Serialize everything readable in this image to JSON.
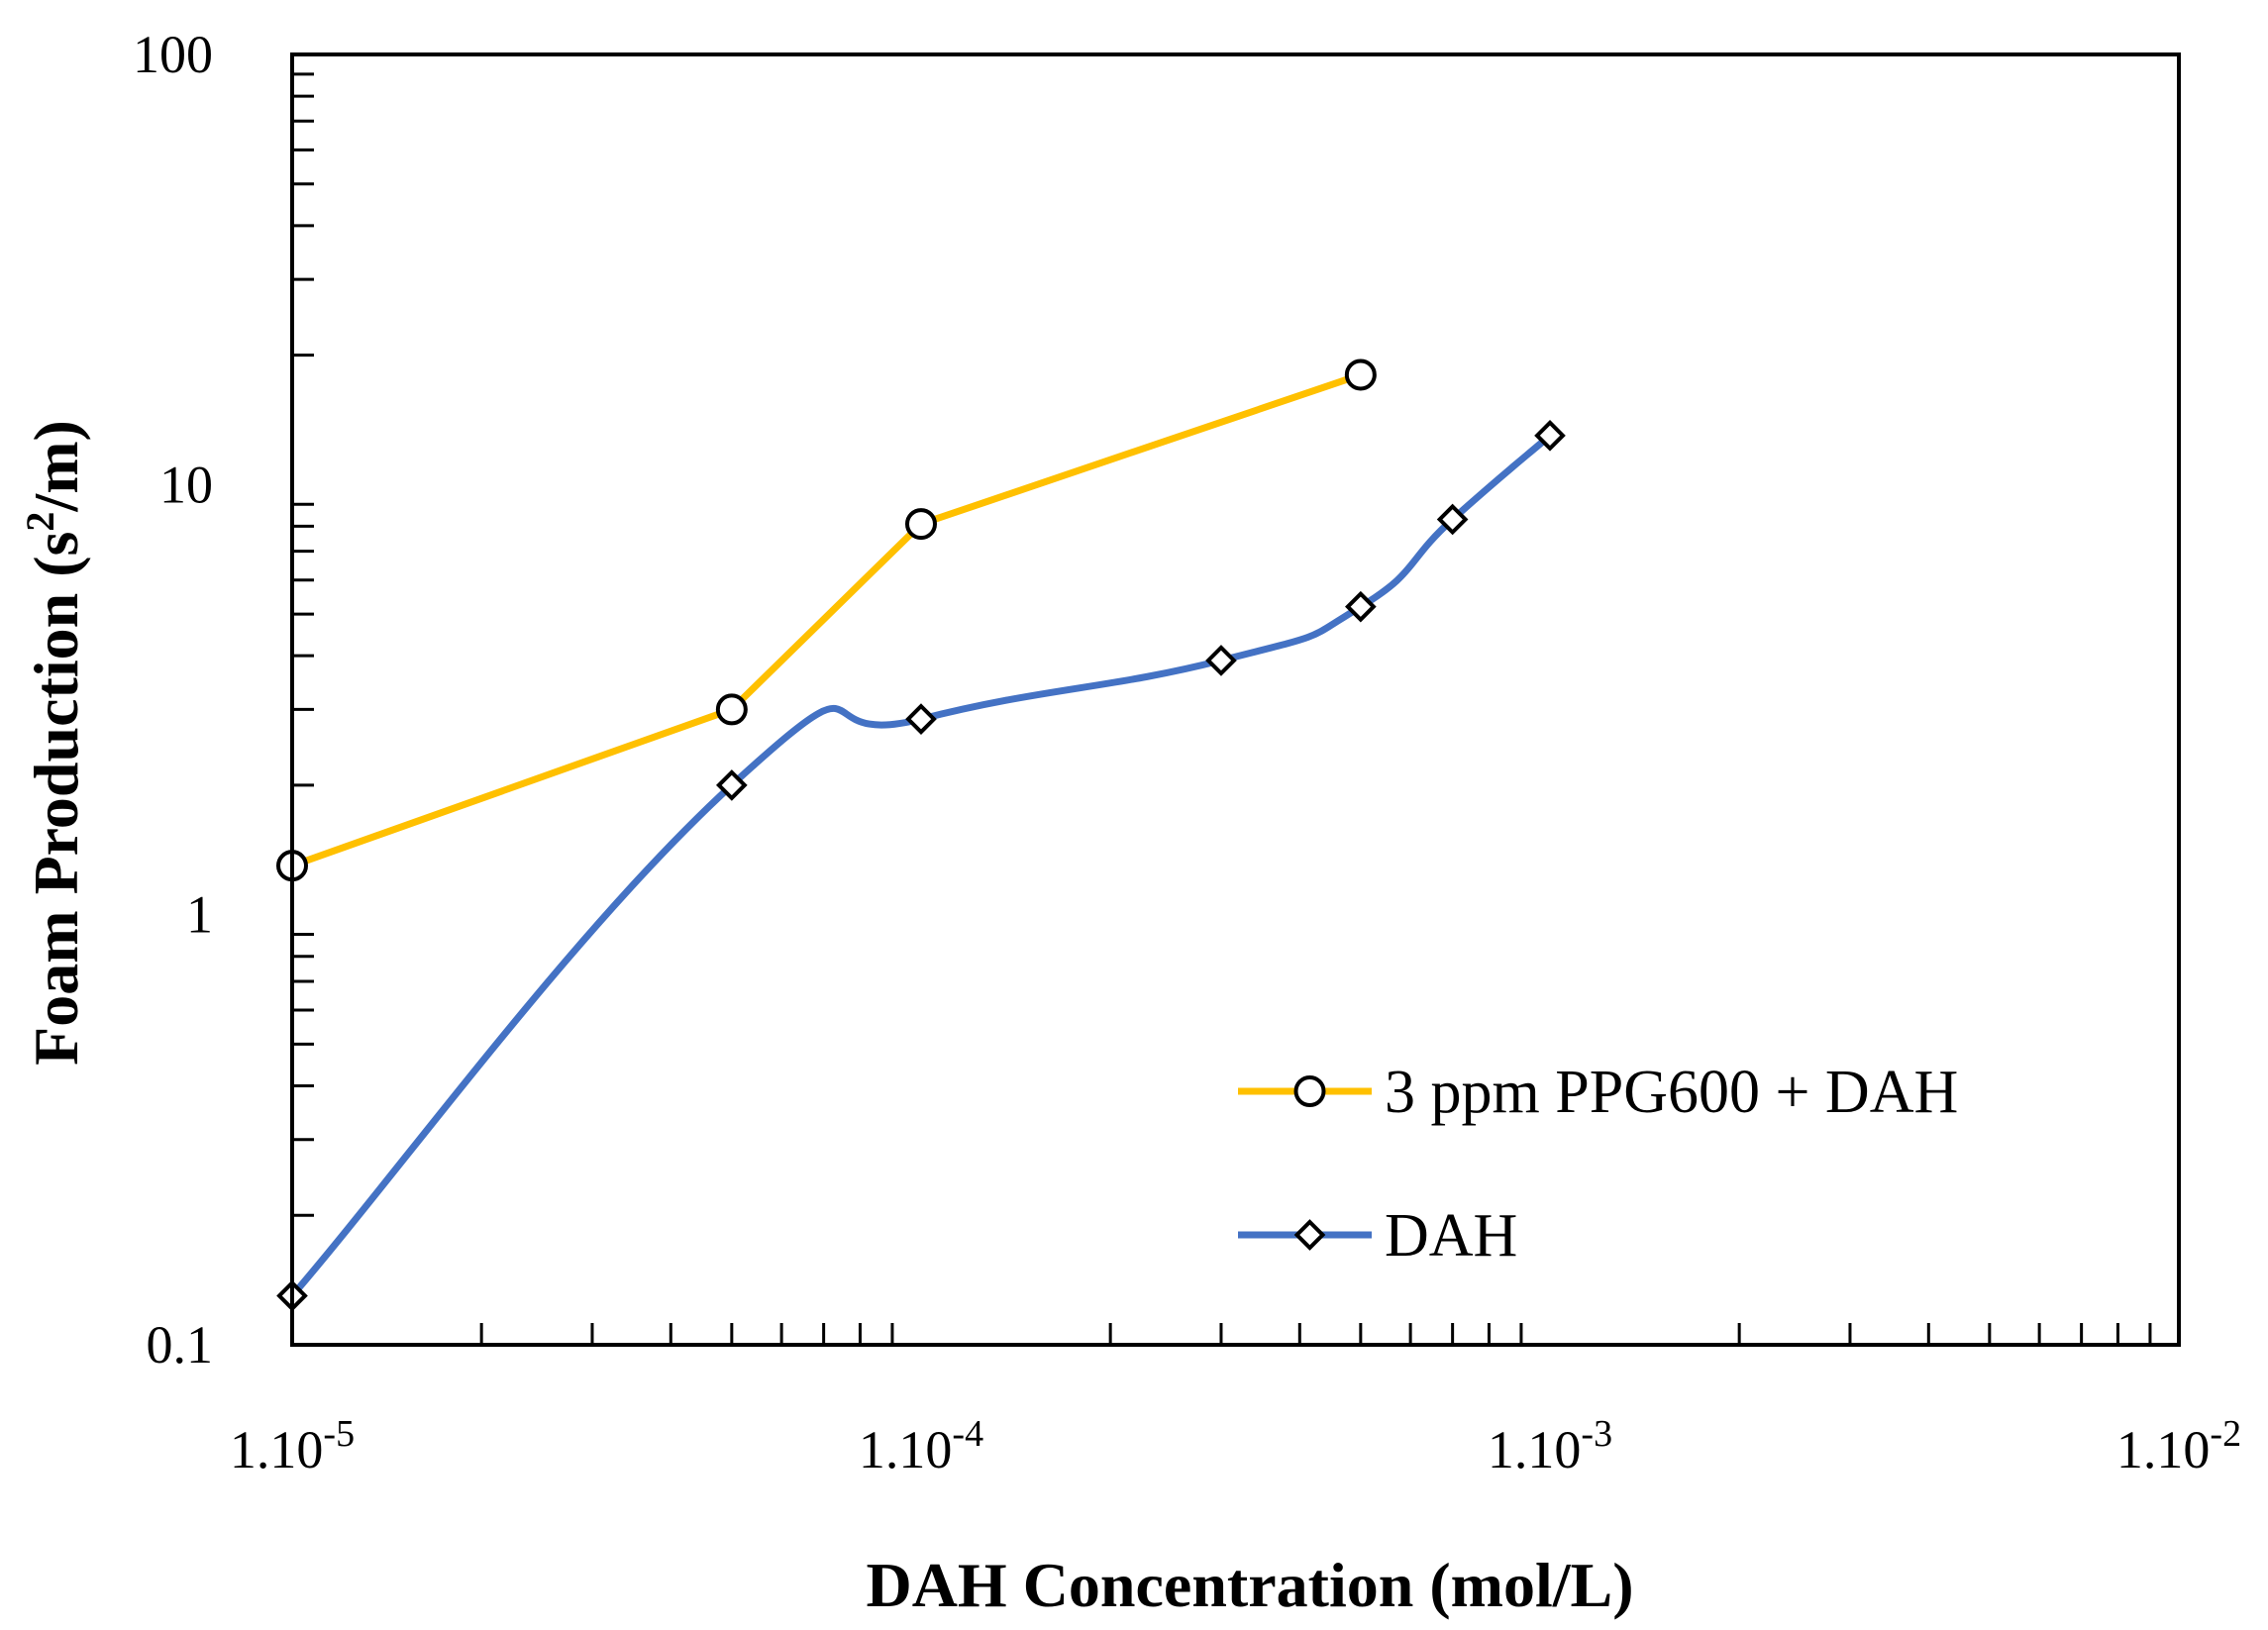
{
  "chart_data": {
    "type": "line",
    "title": "",
    "xlabel": "DAH Concentration (mol/L)",
    "ylabel_main": "Foam Production (s",
    "ylabel_sup": "2",
    "ylabel_tail": "/m)",
    "xscale": "log",
    "yscale": "log",
    "xlim": [
      1e-05,
      0.01
    ],
    "ylim": [
      0.1,
      100
    ],
    "grid": false,
    "legend_position": "bottom-right",
    "x_ticks": [
      {
        "value": 1e-05,
        "base": "1.10",
        "exp": "-5"
      },
      {
        "value": 0.0001,
        "base": "1.10",
        "exp": "-4"
      },
      {
        "value": 0.001,
        "base": "1.10",
        "exp": "-3"
      },
      {
        "value": 0.01,
        "base": "1.10",
        "exp": "-2"
      }
    ],
    "y_ticks": [
      {
        "value": 0.1,
        "label": "0.1"
      },
      {
        "value": 1,
        "label": "1"
      },
      {
        "value": 10,
        "label": "10"
      },
      {
        "value": 100,
        "label": "100"
      }
    ],
    "series": [
      {
        "name": "3 ppm PPG600 + DAH",
        "color": "#FFC000",
        "marker": "circle",
        "smooth": false,
        "x": [
          1e-05,
          5e-05,
          0.0001,
          0.0005
        ],
        "y": [
          1.3,
          3.0,
          8.1,
          18.0
        ]
      },
      {
        "name": "DAH",
        "color": "#4472C4",
        "marker": "diamond",
        "smooth": true,
        "x": [
          1e-05,
          5e-05,
          0.0001,
          0.0003,
          0.0005,
          0.0007,
          0.001
        ],
        "y": [
          0.13,
          2.0,
          2.85,
          3.9,
          5.2,
          8.3,
          13.0
        ]
      }
    ]
  }
}
